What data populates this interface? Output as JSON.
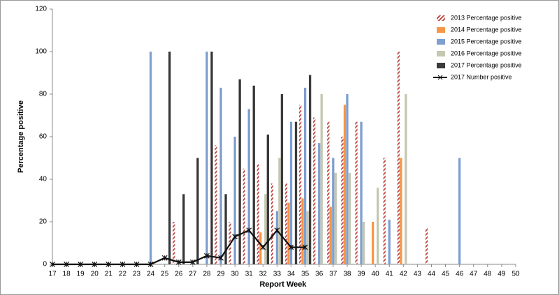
{
  "chart_data": {
    "type": "bar",
    "x_label": "Report Week",
    "y_label": "Percentage positive",
    "categories": [
      17,
      18,
      19,
      20,
      21,
      22,
      23,
      24,
      25,
      26,
      27,
      28,
      29,
      30,
      31,
      32,
      33,
      34,
      35,
      36,
      37,
      38,
      39,
      40,
      41,
      42,
      43,
      44,
      45,
      46,
      47,
      48,
      49,
      50
    ],
    "ylim": [
      0,
      120
    ],
    "yticks": [
      0,
      20,
      40,
      60,
      80,
      100,
      120
    ],
    "legend": "upper right",
    "series": [
      {
        "name": "2013 Percentage positive",
        "color": "#c0504d",
        "pattern": "hatch",
        "values": [
          null,
          null,
          null,
          null,
          null,
          null,
          null,
          null,
          null,
          20,
          null,
          null,
          56,
          20,
          45,
          47,
          38,
          38,
          75,
          69,
          67,
          60,
          67,
          null,
          50,
          100,
          null,
          17,
          null,
          null,
          null,
          null,
          null,
          null
        ]
      },
      {
        "name": "2014 Percentage positive",
        "color": "#f79646",
        "pattern": "solid",
        "values": [
          null,
          null,
          null,
          null,
          null,
          null,
          null,
          null,
          null,
          null,
          null,
          null,
          null,
          null,
          null,
          15,
          null,
          29,
          31,
          null,
          27,
          75,
          null,
          20,
          null,
          50,
          null,
          null,
          null,
          null,
          null,
          null,
          null,
          null
        ]
      },
      {
        "name": "2015 Percentage positive",
        "color": "#7f9fd0",
        "pattern": "solid",
        "values": [
          null,
          null,
          null,
          null,
          null,
          null,
          null,
          100,
          null,
          null,
          null,
          100,
          83,
          60,
          73,
          null,
          25,
          67,
          83,
          57,
          50,
          80,
          67,
          null,
          21,
          null,
          null,
          null,
          null,
          50,
          null,
          null,
          null,
          null
        ]
      },
      {
        "name": "2016 Percentage positive",
        "color": "#c4c8b0",
        "pattern": "solid",
        "values": [
          null,
          null,
          null,
          null,
          null,
          null,
          null,
          null,
          null,
          null,
          null,
          null,
          null,
          null,
          null,
          33,
          50,
          null,
          25,
          80,
          43,
          43,
          20,
          36,
          null,
          80,
          null,
          null,
          null,
          null,
          null,
          null,
          null,
          null
        ]
      },
      {
        "name": "2017 Percentage positive",
        "color": "#3a3a3a",
        "pattern": "solid",
        "values": [
          null,
          null,
          null,
          null,
          null,
          null,
          null,
          null,
          100,
          33,
          50,
          100,
          33,
          87,
          84,
          61,
          80,
          67,
          89,
          null,
          null,
          null,
          null,
          null,
          null,
          null,
          null,
          null,
          null,
          null,
          null,
          null,
          null,
          null
        ]
      },
      {
        "name": "2017 Number positive",
        "color": "#111111",
        "type": "line",
        "values": [
          0,
          0,
          0,
          0,
          0,
          0,
          0,
          0,
          3,
          1,
          1,
          4,
          3,
          13,
          16,
          8,
          16,
          8,
          8,
          null,
          null,
          null,
          null,
          null,
          null,
          null,
          null,
          null,
          null,
          null,
          null,
          null,
          null,
          null
        ]
      }
    ]
  }
}
